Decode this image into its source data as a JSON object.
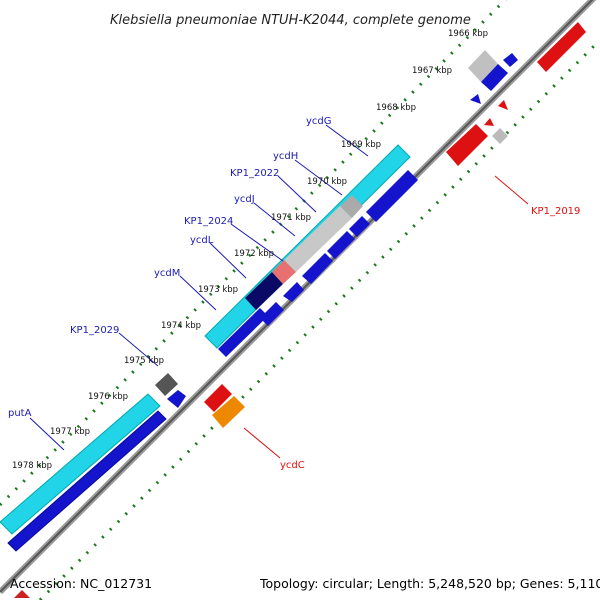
{
  "title": "Klebsiella pneumoniae NTUH-K2044, complete genome",
  "footer": {
    "accession": "Accession: NC_012731",
    "topology": "Topology: circular; Length: 5,248,520 bp; Genes: 5,110"
  },
  "colors": {
    "backbone": "#888888",
    "tick_dots": "#1a7a1a",
    "cds_forward": "#1414cc",
    "cds_reverse": "#dd1111",
    "highlight_cyan": "#22d4e8",
    "label_blue": "#1b1bb3",
    "label_red": "#dd1111"
  },
  "scale_labels": [
    "1966 kbp",
    "1967 kbp",
    "1968 kbp",
    "1969 kbp",
    "1970 kbp",
    "1971 kbp",
    "1972 kbp",
    "1973 kbp",
    "1974 kbp",
    "1975 kbp",
    "1976 kbp",
    "1977 kbp",
    "1978 kbp"
  ],
  "forward_gene_labels": [
    "ycdG",
    "ycdH",
    "KP1_2022",
    "ycdJ",
    "KP1_2024",
    "ycdL",
    "ycdM",
    "KP1_2029",
    "putA"
  ],
  "reverse_gene_labels": [
    "KP1_2019",
    "ycdC"
  ]
}
